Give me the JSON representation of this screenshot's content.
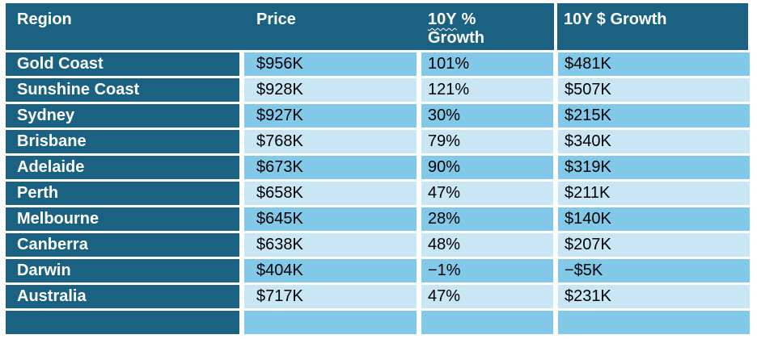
{
  "colors": {
    "header_bg": "#1A6182",
    "region_cell_bg": "#1A6182",
    "row_band_medium": "#82C8E8",
    "row_band_light": "#C8E6F4",
    "header_text": "#FFFFFF",
    "cell_text": "#000000",
    "spellcheck_underline": "#FFFFFF",
    "grid_gap": "#FFFFFF"
  },
  "table": {
    "headers": {
      "region": "Region",
      "price": "Price",
      "pct_growth_word": "10Y",
      "pct_growth_rest": "%",
      "pct_growth_line2": "Growth",
      "dollar_growth": "10Y $ Growth"
    },
    "rows": [
      {
        "region": "Gold Coast",
        "price": "$956K",
        "pct_growth": "101%",
        "dollar_growth": "$481K"
      },
      {
        "region": "Sunshine Coast",
        "price": "$928K",
        "pct_growth": "121%",
        "dollar_growth": "$507K"
      },
      {
        "region": "Sydney",
        "price": "$927K",
        "pct_growth": "30%",
        "dollar_growth": "$215K"
      },
      {
        "region": "Brisbane",
        "price": "$768K",
        "pct_growth": "79%",
        "dollar_growth": "$340K"
      },
      {
        "region": "Adelaide",
        "price": "$673K",
        "pct_growth": "90%",
        "dollar_growth": "$319K"
      },
      {
        "region": "Perth",
        "price": "$658K",
        "pct_growth": "47%",
        "dollar_growth": "$211K"
      },
      {
        "region": "Melbourne",
        "price": "$645K",
        "pct_growth": "28%",
        "dollar_growth": "$140K"
      },
      {
        "region": "Canberra",
        "price": "$638K",
        "pct_growth": "48%",
        "dollar_growth": "$207K"
      },
      {
        "region": "Darwin",
        "price": "$404K",
        "pct_growth": "−1%",
        "dollar_growth": "−$5K"
      },
      {
        "region": "Australia",
        "price": "$717K",
        "pct_growth": "47%",
        "dollar_growth": "$231K"
      }
    ]
  },
  "chart_data": {
    "type": "table",
    "title": "",
    "columns": [
      "Region",
      "Price",
      "10Y % Growth",
      "10Y $ Growth"
    ],
    "categories": [
      "Gold Coast",
      "Sunshine Coast",
      "Sydney",
      "Brisbane",
      "Adelaide",
      "Perth",
      "Melbourne",
      "Canberra",
      "Darwin",
      "Australia"
    ],
    "series": [
      {
        "name": "Price ($K)",
        "values": [
          956,
          928,
          927,
          768,
          673,
          658,
          645,
          638,
          404,
          717
        ]
      },
      {
        "name": "10Y % Growth (%)",
        "values": [
          101,
          121,
          30,
          79,
          90,
          47,
          28,
          48,
          -1,
          47
        ]
      },
      {
        "name": "10Y $ Growth ($K)",
        "values": [
          481,
          507,
          215,
          340,
          319,
          211,
          140,
          207,
          -5,
          231
        ]
      }
    ]
  }
}
